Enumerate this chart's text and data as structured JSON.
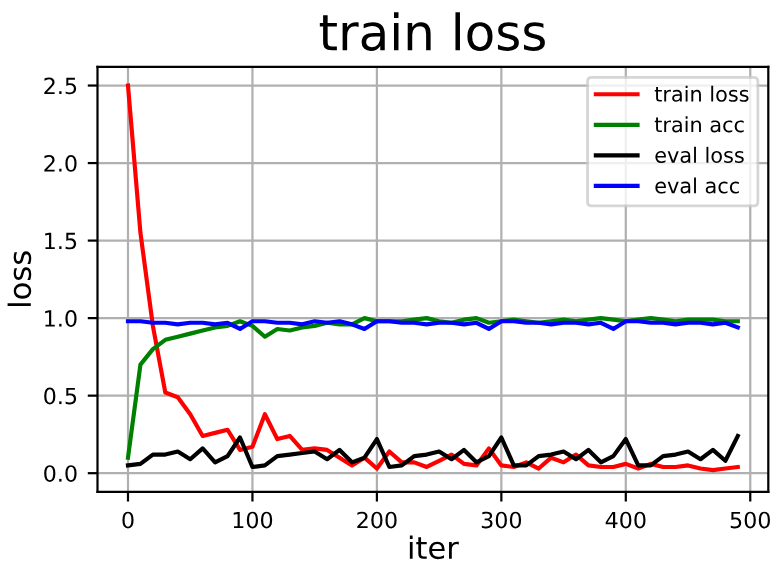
{
  "chart_data": {
    "type": "line",
    "title": "train loss",
    "xlabel": "iter",
    "ylabel": "loss",
    "x": [
      0,
      10,
      20,
      30,
      40,
      50,
      60,
      70,
      80,
      90,
      100,
      110,
      120,
      130,
      140,
      150,
      160,
      170,
      180,
      190,
      200,
      210,
      220,
      230,
      240,
      250,
      260,
      270,
      280,
      290,
      300,
      310,
      320,
      330,
      340,
      350,
      360,
      370,
      380,
      390,
      400,
      410,
      420,
      430,
      440,
      450,
      460,
      470,
      480,
      490
    ],
    "series": [
      {
        "name": "train loss",
        "color": "#ff0000",
        "values": [
          2.5,
          1.55,
          0.95,
          0.52,
          0.49,
          0.38,
          0.24,
          0.26,
          0.28,
          0.15,
          0.17,
          0.38,
          0.22,
          0.24,
          0.15,
          0.16,
          0.15,
          0.1,
          0.05,
          0.1,
          0.03,
          0.14,
          0.07,
          0.07,
          0.04,
          0.08,
          0.12,
          0.06,
          0.05,
          0.16,
          0.05,
          0.04,
          0.07,
          0.03,
          0.1,
          0.07,
          0.12,
          0.05,
          0.04,
          0.04,
          0.06,
          0.03,
          0.06,
          0.04,
          0.04,
          0.05,
          0.03,
          0.02,
          0.03,
          0.04
        ]
      },
      {
        "name": "train acc",
        "color": "#008000",
        "values": [
          0.1,
          0.7,
          0.8,
          0.86,
          0.88,
          0.9,
          0.92,
          0.94,
          0.95,
          0.98,
          0.95,
          0.88,
          0.93,
          0.92,
          0.94,
          0.95,
          0.97,
          0.96,
          0.96,
          1.0,
          0.98,
          0.98,
          0.98,
          0.99,
          1.0,
          0.98,
          0.97,
          0.99,
          1.0,
          0.97,
          0.98,
          0.99,
          0.98,
          0.97,
          0.98,
          0.99,
          0.98,
          0.99,
          1.0,
          0.99,
          0.98,
          0.99,
          1.0,
          0.99,
          0.98,
          0.99,
          0.99,
          0.99,
          0.98,
          0.98
        ]
      },
      {
        "name": "eval loss",
        "color": "#000000",
        "values": [
          0.05,
          0.06,
          0.12,
          0.12,
          0.14,
          0.09,
          0.16,
          0.07,
          0.11,
          0.23,
          0.04,
          0.05,
          0.11,
          0.12,
          0.13,
          0.14,
          0.09,
          0.15,
          0.07,
          0.1,
          0.22,
          0.04,
          0.05,
          0.11,
          0.12,
          0.14,
          0.09,
          0.15,
          0.07,
          0.11,
          0.23,
          0.05,
          0.05,
          0.11,
          0.12,
          0.14,
          0.09,
          0.15,
          0.07,
          0.11,
          0.22,
          0.05,
          0.05,
          0.11,
          0.12,
          0.14,
          0.09,
          0.15,
          0.08,
          0.24
        ]
      },
      {
        "name": "eval acc",
        "color": "#0000ff",
        "values": [
          0.98,
          0.98,
          0.97,
          0.97,
          0.96,
          0.97,
          0.97,
          0.96,
          0.97,
          0.93,
          0.98,
          0.98,
          0.97,
          0.97,
          0.96,
          0.98,
          0.97,
          0.98,
          0.96,
          0.93,
          0.98,
          0.98,
          0.97,
          0.97,
          0.96,
          0.97,
          0.97,
          0.96,
          0.97,
          0.93,
          0.98,
          0.98,
          0.97,
          0.97,
          0.96,
          0.97,
          0.97,
          0.96,
          0.97,
          0.93,
          0.98,
          0.98,
          0.97,
          0.97,
          0.96,
          0.97,
          0.97,
          0.96,
          0.97,
          0.94
        ]
      }
    ],
    "xlim": [
      -24.5,
      514.5
    ],
    "ylim": [
      -0.12,
      2.62
    ],
    "xticks": [
      0,
      100,
      200,
      300,
      400,
      500
    ],
    "yticks": [
      {
        "value": 0,
        "label": "0.0"
      },
      {
        "value": 0.5,
        "label": "0.5"
      },
      {
        "value": 1,
        "label": "1.0"
      },
      {
        "value": 1.5,
        "label": "1.5"
      },
      {
        "value": 2,
        "label": "2.0"
      },
      {
        "value": 2.5,
        "label": "2.5"
      }
    ],
    "grid": true,
    "legend": "top right"
  }
}
